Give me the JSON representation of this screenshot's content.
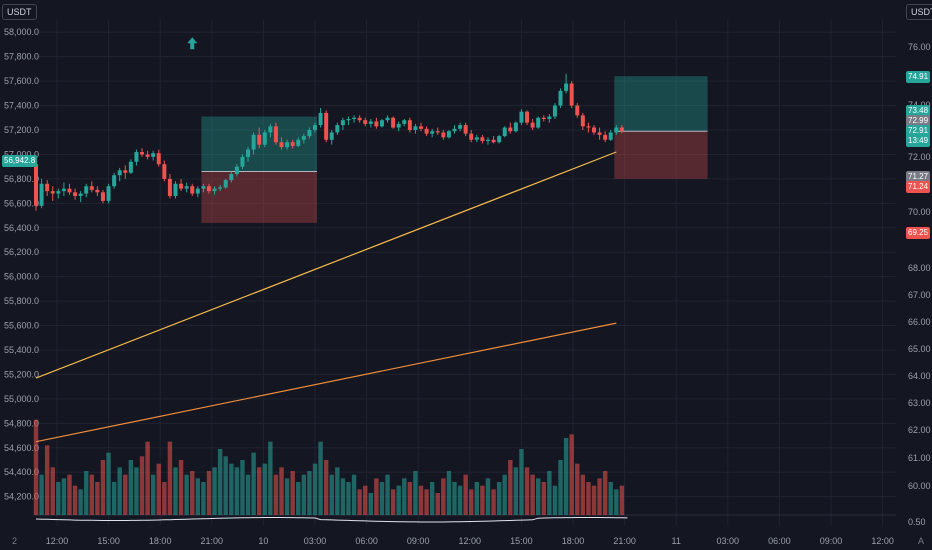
{
  "ui": {
    "left_currency": "USDT",
    "right_currency": "USDT",
    "bottom_left_marker": "2",
    "bottom_right_marker": "A"
  },
  "chart_data": {
    "type": "candlestick",
    "left_axis": {
      "ticks": [
        "58,000.0",
        "57,800.0",
        "57,600.0",
        "57,400.0",
        "57,200.0",
        "57,000.0",
        "56,800.0",
        "56,600.0",
        "56,400.0",
        "56,200.0",
        "56,000.0",
        "55,800.0",
        "55,600.0",
        "55,400.0",
        "55,200.0",
        "55,000.0",
        "54,800.0",
        "54,600.0",
        "54,400.0",
        "54,200.0"
      ],
      "range": [
        54050,
        58100
      ],
      "current_label": "56,942.8"
    },
    "right_axis": {
      "ticks": [
        "76.00",
        "74.00",
        "72.00",
        "70.00",
        "68.00",
        "67.00",
        "66.00",
        "65.00",
        "64.00",
        "63.00",
        "62.00",
        "61.00",
        "60.00",
        "0.50"
      ],
      "badges": [
        {
          "text": "74.91",
          "color": "#26a69a"
        },
        {
          "text": "73.48",
          "color": "#26a69a"
        },
        {
          "text": "72.99",
          "color": "#787b86"
        },
        {
          "text": "72.91",
          "color": "#26a69a"
        },
        {
          "text": "13:49",
          "color": "#26a69a"
        },
        {
          "text": "71.27",
          "color": "#787b86"
        },
        {
          "text": "71.24",
          "color": "#ef5350"
        },
        {
          "text": "69.25",
          "color": "#ef5350"
        }
      ]
    },
    "x_axis": {
      "ticks": [
        "12:00",
        "15:00",
        "18:00",
        "21:00",
        "10",
        "03:00",
        "06:00",
        "09:00",
        "12:00",
        "15:00",
        "18:00",
        "21:00",
        "11",
        "03:00",
        "06:00",
        "09:00",
        "12:00"
      ]
    },
    "candles": [
      {
        "o": 56920,
        "h": 56960,
        "l": 56540,
        "c": 56580
      },
      {
        "o": 56580,
        "h": 56800,
        "l": 56560,
        "c": 56760
      },
      {
        "o": 56760,
        "h": 56790,
        "l": 56660,
        "c": 56700
      },
      {
        "o": 56700,
        "h": 56740,
        "l": 56620,
        "c": 56680
      },
      {
        "o": 56680,
        "h": 56720,
        "l": 56640,
        "c": 56700
      },
      {
        "o": 56700,
        "h": 56770,
        "l": 56660,
        "c": 56720
      },
      {
        "o": 56720,
        "h": 56760,
        "l": 56670,
        "c": 56690
      },
      {
        "o": 56690,
        "h": 56720,
        "l": 56630,
        "c": 56660
      },
      {
        "o": 56660,
        "h": 56700,
        "l": 56610,
        "c": 56680
      },
      {
        "o": 56680,
        "h": 56760,
        "l": 56650,
        "c": 56740
      },
      {
        "o": 56740,
        "h": 56780,
        "l": 56690,
        "c": 56710
      },
      {
        "o": 56710,
        "h": 56740,
        "l": 56660,
        "c": 56690
      },
      {
        "o": 56690,
        "h": 56710,
        "l": 56600,
        "c": 56620
      },
      {
        "o": 56620,
        "h": 56760,
        "l": 56600,
        "c": 56740
      },
      {
        "o": 56740,
        "h": 56850,
        "l": 56720,
        "c": 56830
      },
      {
        "o": 56830,
        "h": 56890,
        "l": 56780,
        "c": 56870
      },
      {
        "o": 56870,
        "h": 56910,
        "l": 56800,
        "c": 56850
      },
      {
        "o": 56850,
        "h": 56960,
        "l": 56840,
        "c": 56940
      },
      {
        "o": 56940,
        "h": 57040,
        "l": 56910,
        "c": 57020
      },
      {
        "o": 57020,
        "h": 57050,
        "l": 56980,
        "c": 57000
      },
      {
        "o": 57000,
        "h": 57030,
        "l": 56960,
        "c": 56980
      },
      {
        "o": 56980,
        "h": 57030,
        "l": 56950,
        "c": 57010
      },
      {
        "o": 57010,
        "h": 57040,
        "l": 56900,
        "c": 56920
      },
      {
        "o": 56920,
        "h": 56950,
        "l": 56780,
        "c": 56800
      },
      {
        "o": 56800,
        "h": 56840,
        "l": 56640,
        "c": 56660
      },
      {
        "o": 56660,
        "h": 56780,
        "l": 56640,
        "c": 56760
      },
      {
        "o": 56760,
        "h": 56800,
        "l": 56700,
        "c": 56720
      },
      {
        "o": 56720,
        "h": 56770,
        "l": 56690,
        "c": 56740
      },
      {
        "o": 56740,
        "h": 56760,
        "l": 56660,
        "c": 56680
      },
      {
        "o": 56680,
        "h": 56740,
        "l": 56650,
        "c": 56720
      },
      {
        "o": 56720,
        "h": 56760,
        "l": 56690,
        "c": 56740
      },
      {
        "o": 56740,
        "h": 56760,
        "l": 56680,
        "c": 56700
      },
      {
        "o": 56700,
        "h": 56740,
        "l": 56670,
        "c": 56720
      },
      {
        "o": 56720,
        "h": 56750,
        "l": 56700,
        "c": 56730
      },
      {
        "o": 56730,
        "h": 56800,
        "l": 56720,
        "c": 56790
      },
      {
        "o": 56790,
        "h": 56860,
        "l": 56770,
        "c": 56840
      },
      {
        "o": 56840,
        "h": 56920,
        "l": 56820,
        "c": 56900
      },
      {
        "o": 56900,
        "h": 57000,
        "l": 56880,
        "c": 56980
      },
      {
        "o": 56980,
        "h": 57060,
        "l": 56940,
        "c": 57040
      },
      {
        "o": 57040,
        "h": 57180,
        "l": 57000,
        "c": 57160
      },
      {
        "o": 57160,
        "h": 57220,
        "l": 57050,
        "c": 57080
      },
      {
        "o": 57080,
        "h": 57200,
        "l": 57060,
        "c": 57180
      },
      {
        "o": 57180,
        "h": 57250,
        "l": 57140,
        "c": 57230
      },
      {
        "o": 57230,
        "h": 57260,
        "l": 57080,
        "c": 57100
      },
      {
        "o": 57100,
        "h": 57140,
        "l": 57040,
        "c": 57060
      },
      {
        "o": 57060,
        "h": 57120,
        "l": 57040,
        "c": 57100
      },
      {
        "o": 57100,
        "h": 57120,
        "l": 57050,
        "c": 57070
      },
      {
        "o": 57070,
        "h": 57140,
        "l": 57060,
        "c": 57120
      },
      {
        "o": 57120,
        "h": 57170,
        "l": 57090,
        "c": 57150
      },
      {
        "o": 57150,
        "h": 57220,
        "l": 57130,
        "c": 57200
      },
      {
        "o": 57200,
        "h": 57260,
        "l": 57180,
        "c": 57240
      },
      {
        "o": 57240,
        "h": 57380,
        "l": 57220,
        "c": 57340
      },
      {
        "o": 57340,
        "h": 57360,
        "l": 57100,
        "c": 57120
      },
      {
        "o": 57120,
        "h": 57200,
        "l": 57080,
        "c": 57180
      },
      {
        "o": 57180,
        "h": 57260,
        "l": 57160,
        "c": 57240
      },
      {
        "o": 57240,
        "h": 57300,
        "l": 57200,
        "c": 57280
      },
      {
        "o": 57280,
        "h": 57310,
        "l": 57240,
        "c": 57290
      },
      {
        "o": 57290,
        "h": 57320,
        "l": 57260,
        "c": 57300
      },
      {
        "o": 57300,
        "h": 57320,
        "l": 57260,
        "c": 57280
      },
      {
        "o": 57280,
        "h": 57300,
        "l": 57230,
        "c": 57250
      },
      {
        "o": 57250,
        "h": 57290,
        "l": 57220,
        "c": 57270
      },
      {
        "o": 57270,
        "h": 57300,
        "l": 57210,
        "c": 57230
      },
      {
        "o": 57230,
        "h": 57290,
        "l": 57220,
        "c": 57280
      },
      {
        "o": 57280,
        "h": 57320,
        "l": 57260,
        "c": 57300
      },
      {
        "o": 57300,
        "h": 57310,
        "l": 57210,
        "c": 57220
      },
      {
        "o": 57220,
        "h": 57270,
        "l": 57190,
        "c": 57250
      },
      {
        "o": 57250,
        "h": 57290,
        "l": 57230,
        "c": 57280
      },
      {
        "o": 57280,
        "h": 57300,
        "l": 57180,
        "c": 57200
      },
      {
        "o": 57200,
        "h": 57250,
        "l": 57170,
        "c": 57230
      },
      {
        "o": 57230,
        "h": 57260,
        "l": 57190,
        "c": 57210
      },
      {
        "o": 57210,
        "h": 57230,
        "l": 57150,
        "c": 57170
      },
      {
        "o": 57170,
        "h": 57210,
        "l": 57140,
        "c": 57190
      },
      {
        "o": 57190,
        "h": 57220,
        "l": 57160,
        "c": 57180
      },
      {
        "o": 57180,
        "h": 57200,
        "l": 57120,
        "c": 57140
      },
      {
        "o": 57140,
        "h": 57200,
        "l": 57130,
        "c": 57190
      },
      {
        "o": 57190,
        "h": 57240,
        "l": 57170,
        "c": 57210
      },
      {
        "o": 57210,
        "h": 57260,
        "l": 57190,
        "c": 57240
      },
      {
        "o": 57240,
        "h": 57260,
        "l": 57150,
        "c": 57170
      },
      {
        "o": 57170,
        "h": 57200,
        "l": 57100,
        "c": 57120
      },
      {
        "o": 57120,
        "h": 57160,
        "l": 57100,
        "c": 57140
      },
      {
        "o": 57140,
        "h": 57160,
        "l": 57090,
        "c": 57110
      },
      {
        "o": 57110,
        "h": 57140,
        "l": 57080,
        "c": 57120
      },
      {
        "o": 57120,
        "h": 57150,
        "l": 57090,
        "c": 57100
      },
      {
        "o": 57100,
        "h": 57160,
        "l": 57090,
        "c": 57150
      },
      {
        "o": 57150,
        "h": 57230,
        "l": 57140,
        "c": 57220
      },
      {
        "o": 57220,
        "h": 57260,
        "l": 57170,
        "c": 57190
      },
      {
        "o": 57190,
        "h": 57270,
        "l": 57180,
        "c": 57260
      },
      {
        "o": 57260,
        "h": 57370,
        "l": 57240,
        "c": 57350
      },
      {
        "o": 57350,
        "h": 57360,
        "l": 57240,
        "c": 57260
      },
      {
        "o": 57260,
        "h": 57290,
        "l": 57200,
        "c": 57220
      },
      {
        "o": 57220,
        "h": 57310,
        "l": 57210,
        "c": 57300
      },
      {
        "o": 57300,
        "h": 57320,
        "l": 57270,
        "c": 57290
      },
      {
        "o": 57290,
        "h": 57330,
        "l": 57260,
        "c": 57310
      },
      {
        "o": 57310,
        "h": 57420,
        "l": 57290,
        "c": 57400
      },
      {
        "o": 57400,
        "h": 57540,
        "l": 57380,
        "c": 57520
      },
      {
        "o": 57520,
        "h": 57660,
        "l": 57500,
        "c": 57580
      },
      {
        "o": 57580,
        "h": 57600,
        "l": 57380,
        "c": 57400
      },
      {
        "o": 57400,
        "h": 57420,
        "l": 57300,
        "c": 57320
      },
      {
        "o": 57320,
        "h": 57340,
        "l": 57200,
        "c": 57230
      },
      {
        "o": 57230,
        "h": 57260,
        "l": 57180,
        "c": 57220
      },
      {
        "o": 57220,
        "h": 57240,
        "l": 57160,
        "c": 57180
      },
      {
        "o": 57180,
        "h": 57220,
        "l": 57120,
        "c": 57160
      },
      {
        "o": 57160,
        "h": 57190,
        "l": 57100,
        "c": 57120
      },
      {
        "o": 57120,
        "h": 57200,
        "l": 57110,
        "c": 57180
      },
      {
        "o": 57180,
        "h": 57240,
        "l": 57160,
        "c": 57220
      },
      {
        "o": 57220,
        "h": 57240,
        "l": 57170,
        "c": 57190
      }
    ],
    "volume": [
      52,
      22,
      38,
      26,
      18,
      20,
      22,
      16,
      14,
      24,
      22,
      18,
      30,
      34,
      18,
      26,
      22,
      30,
      26,
      32,
      40,
      22,
      28,
      18,
      40,
      26,
      30,
      22,
      24,
      20,
      18,
      24,
      26,
      36,
      32,
      28,
      26,
      30,
      22,
      34,
      26,
      28,
      40,
      22,
      26,
      20,
      24,
      18,
      22,
      24,
      28,
      40,
      30,
      22,
      26,
      20,
      18,
      22,
      14,
      16,
      12,
      20,
      18,
      22,
      14,
      16,
      20,
      18,
      24,
      16,
      14,
      18,
      12,
      20,
      24,
      18,
      16,
      22,
      14,
      18,
      16,
      20,
      14,
      18,
      22,
      30,
      26,
      36,
      26,
      22,
      20,
      18,
      24,
      16,
      30,
      42,
      44,
      28,
      22,
      18,
      16,
      20,
      24,
      18,
      14,
      16
    ],
    "volume_max": 60,
    "ma_fast": {
      "color": "#f5b94b",
      "points": [
        [
          0,
          55170
        ],
        [
          104,
          57020
        ]
      ]
    },
    "ma_slow": {
      "color": "#f08c3a",
      "points": [
        [
          0,
          54650
        ],
        [
          104,
          55620
        ]
      ]
    },
    "positions": [
      {
        "start": 30,
        "end": 50,
        "entry": 56860,
        "target": 57310,
        "stop": 56440
      },
      {
        "start": 104,
        "end": 120,
        "entry": 57190,
        "target": 57640,
        "stop": 56800
      }
    ],
    "signal_arrow": {
      "index": 28,
      "price": 57910,
      "color": "#26a69a"
    },
    "colors": {
      "up": "#26a69a",
      "down": "#ef5350",
      "grid": "#1f2330",
      "bg": "#141722"
    }
  }
}
